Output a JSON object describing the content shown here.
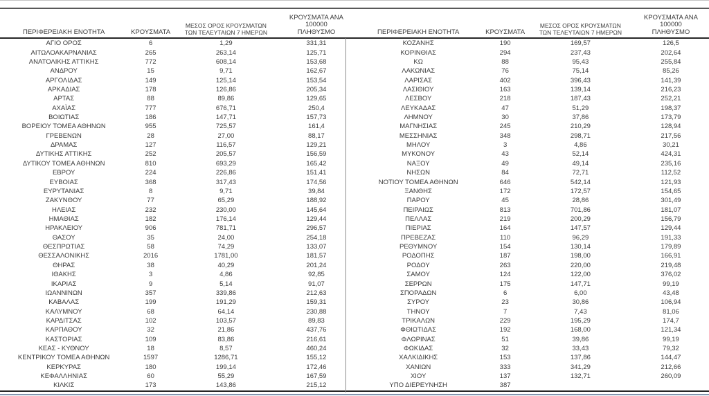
{
  "colors": {
    "text": "#3a3a3a",
    "rule_dark": "#262626",
    "rule_gray": "#595959",
    "rule_light": "#c3c3c3",
    "bottom_accent": "#8496b0"
  },
  "table": {
    "headers": {
      "region": "ΠΕΡΙΦΕΡΕΙΑΚΗ ΕΝΟΤΗΤΑ",
      "cases": "ΚΡΟΥΣΜΑΤΑ",
      "avg7_line1": "ΜΕΣΟΣ ΟΡΟΣ ΚΡΟΥΣΜΑΤΩΝ",
      "avg7_line2": "ΤΩΝ ΤΕΛΕΥΤΑΙΩΝ 7 ΗΜΕΡΩΝ",
      "per100k_line1": "ΚΡΟΥΣΜΑΤΑ ΑΝΑ 100000",
      "per100k_line2": "ΠΛΗΘΥΣΜΟ"
    },
    "left_rows": [
      [
        "ΑΓΙΟ ΟΡΟΣ",
        "6",
        "1,29",
        "331,31"
      ],
      [
        "ΑΙΤΩΛΟΑΚΑΡΝΑΝΙΑΣ",
        "265",
        "263,14",
        "125,71"
      ],
      [
        "ΑΝΑΤΟΛΙΚΗΣ ΑΤΤΙΚΗΣ",
        "772",
        "608,14",
        "153,68"
      ],
      [
        "ΑΝΔΡΟΥ",
        "15",
        "9,71",
        "162,67"
      ],
      [
        "ΑΡΓΟΛΙΔΑΣ",
        "149",
        "125,14",
        "153,54"
      ],
      [
        "ΑΡΚΑΔΙΑΣ",
        "178",
        "126,86",
        "205,34"
      ],
      [
        "ΑΡΤΑΣ",
        "88",
        "89,86",
        "129,65"
      ],
      [
        "ΑΧΑΪΑΣ",
        "777",
        "676,71",
        "250,4"
      ],
      [
        "ΒΟΙΩΤΙΑΣ",
        "186",
        "147,71",
        "157,73"
      ],
      [
        "ΒΟΡΕΙΟΥ ΤΟΜΕΑ ΑΘΗΝΩΝ",
        "955",
        "725,57",
        "161,4"
      ],
      [
        "ΓΡΕΒΕΝΩΝ",
        "28",
        "27,00",
        "88,17"
      ],
      [
        "ΔΡΑΜΑΣ",
        "127",
        "116,57",
        "129,21"
      ],
      [
        "ΔΥΤΙΚΗΣ ΑΤΤΙΚΗΣ",
        "252",
        "205,57",
        "156,59"
      ],
      [
        "ΔΥΤΙΚΟΥ ΤΟΜΕΑ ΑΘΗΝΩΝ",
        "810",
        "693,29",
        "165,42"
      ],
      [
        "ΕΒΡΟΥ",
        "224",
        "226,86",
        "151,41"
      ],
      [
        "ΕΥΒΟΙΑΣ",
        "368",
        "317,43",
        "174,56"
      ],
      [
        "ΕΥΡΥΤΑΝΙΑΣ",
        "8",
        "9,71",
        "39,84"
      ],
      [
        "ΖΑΚΥΝΘΟΥ",
        "77",
        "65,29",
        "188,92"
      ],
      [
        "ΗΛΕΙΑΣ",
        "232",
        "230,00",
        "145,64"
      ],
      [
        "ΗΜΑΘΙΑΣ",
        "182",
        "176,14",
        "129,44"
      ],
      [
        "ΗΡΑΚΛΕΙΟΥ",
        "906",
        "781,71",
        "296,57"
      ],
      [
        "ΘΑΣΟΥ",
        "35",
        "24,00",
        "254,18"
      ],
      [
        "ΘΕΣΠΡΩΤΙΑΣ",
        "58",
        "74,29",
        "133,07"
      ],
      [
        "ΘΕΣΣΑΛΟΝΙΚΗΣ",
        "2016",
        "1781,00",
        "181,57"
      ],
      [
        "ΘΗΡΑΣ",
        "38",
        "40,29",
        "201,24"
      ],
      [
        "ΙΘΑΚΗΣ",
        "3",
        "4,86",
        "92,85"
      ],
      [
        "ΙΚΑΡΙΑΣ",
        "9",
        "5,14",
        "91,07"
      ],
      [
        "ΙΩΑΝΝΙΝΩΝ",
        "357",
        "339,86",
        "212,63"
      ],
      [
        "ΚΑΒΑΛΑΣ",
        "199",
        "191,29",
        "159,31"
      ],
      [
        "ΚΑΛΥΜΝΟΥ",
        "68",
        "64,14",
        "230,88"
      ],
      [
        "ΚΑΡΔΙΤΣΑΣ",
        "102",
        "103,57",
        "89,83"
      ],
      [
        "ΚΑΡΠΑΘΟΥ",
        "32",
        "21,86",
        "437,76"
      ],
      [
        "ΚΑΣΤΟΡΙΑΣ",
        "109",
        "83,86",
        "216,61"
      ],
      [
        "ΚΕΑΣ - ΚΥΘΝΟΥ",
        "18",
        "8,57",
        "460,24"
      ],
      [
        "ΚΕΝΤΡΙΚΟΥ ΤΟΜΕΑ ΑΘΗΝΩΝ",
        "1597",
        "1286,71",
        "155,12"
      ],
      [
        "ΚΕΡΚΥΡΑΣ",
        "180",
        "199,14",
        "172,46"
      ],
      [
        "ΚΕΦΑΛΛΗΝΙΑΣ",
        "60",
        "55,29",
        "167,59"
      ],
      [
        "ΚΙΛΚΙΣ",
        "173",
        "143,86",
        "215,12"
      ]
    ],
    "right_rows": [
      [
        "ΚΟΖΑΝΗΣ",
        "190",
        "169,57",
        "126,5"
      ],
      [
        "ΚΟΡΙΝΘΙΑΣ",
        "294",
        "237,43",
        "202,64"
      ],
      [
        "ΚΩ",
        "88",
        "95,43",
        "255,84"
      ],
      [
        "ΛΑΚΩΝΙΑΣ",
        "76",
        "75,14",
        "85,26"
      ],
      [
        "ΛΑΡΙΣΑΣ",
        "402",
        "396,43",
        "141,39"
      ],
      [
        "ΛΑΣΙΘΙΟΥ",
        "163",
        "139,14",
        "216,23"
      ],
      [
        "ΛΕΣΒΟΥ",
        "218",
        "187,43",
        "252,21"
      ],
      [
        "ΛΕΥΚΑΔΑΣ",
        "47",
        "51,29",
        "198,37"
      ],
      [
        "ΛΗΜΝΟΥ",
        "30",
        "37,86",
        "173,79"
      ],
      [
        "ΜΑΓΝΗΣΙΑΣ",
        "245",
        "210,29",
        "128,94"
      ],
      [
        "ΜΕΣΣΗΝΙΑΣ",
        "348",
        "298,71",
        "217,56"
      ],
      [
        "ΜΗΛΟΥ",
        "3",
        "4,86",
        "30,21"
      ],
      [
        "ΜΥΚΟΝΟΥ",
        "43",
        "52,14",
        "424,31"
      ],
      [
        "ΝΑΞΟΥ",
        "49",
        "49,14",
        "235,16"
      ],
      [
        "ΝΗΣΩΝ",
        "84",
        "72,71",
        "112,52"
      ],
      [
        "ΝΟΤΙΟΥ ΤΟΜΕΑ ΑΘΗΝΩΝ",
        "646",
        "542,14",
        "121,93"
      ],
      [
        "ΞΑΝΘΗΣ",
        "172",
        "172,57",
        "154,65"
      ],
      [
        "ΠΑΡΟΥ",
        "45",
        "28,86",
        "301,49"
      ],
      [
        "ΠΕΙΡΑΙΩΣ",
        "813",
        "701,86",
        "181,07"
      ],
      [
        "ΠΕΛΛΑΣ",
        "219",
        "200,29",
        "156,79"
      ],
      [
        "ΠΙΕΡΙΑΣ",
        "164",
        "147,57",
        "129,44"
      ],
      [
        "ΠΡΕΒΕΖΑΣ",
        "110",
        "96,29",
        "191,33"
      ],
      [
        "ΡΕΘΥΜΝΟΥ",
        "154",
        "130,14",
        "179,89"
      ],
      [
        "ΡΟΔΟΠΗΣ",
        "187",
        "198,00",
        "166,91"
      ],
      [
        "ΡΟΔΟΥ",
        "263",
        "220,00",
        "219,48"
      ],
      [
        "ΣΑΜΟΥ",
        "124",
        "122,00",
        "376,02"
      ],
      [
        "ΣΕΡΡΩΝ",
        "175",
        "147,71",
        "99,19"
      ],
      [
        "ΣΠΟΡΑΔΩΝ",
        "6",
        "6,00",
        "43,48"
      ],
      [
        "ΣΥΡΟΥ",
        "23",
        "30,86",
        "106,94"
      ],
      [
        "ΤΗΝΟΥ",
        "7",
        "7,43",
        "81,06"
      ],
      [
        "ΤΡΙΚΑΛΩΝ",
        "229",
        "195,29",
        "174,7"
      ],
      [
        "ΦΘΙΩΤΙΔΑΣ",
        "192",
        "168,00",
        "121,34"
      ],
      [
        "ΦΛΩΡΙΝΑΣ",
        "51",
        "39,86",
        "99,19"
      ],
      [
        "ΦΩΚΙΔΑΣ",
        "32",
        "33,43",
        "79,32"
      ],
      [
        "ΧΑΛΚΙΔΙΚΗΣ",
        "153",
        "137,86",
        "144,47"
      ],
      [
        "ΧΑΝΙΩΝ",
        "333",
        "341,29",
        "212,66"
      ],
      [
        "ΧΙΟΥ",
        "137",
        "132,71",
        "260,09"
      ],
      [
        "ΥΠΟ ΔΙΕΡΕΥΝΗΣΗ",
        "387",
        "",
        ""
      ]
    ]
  }
}
